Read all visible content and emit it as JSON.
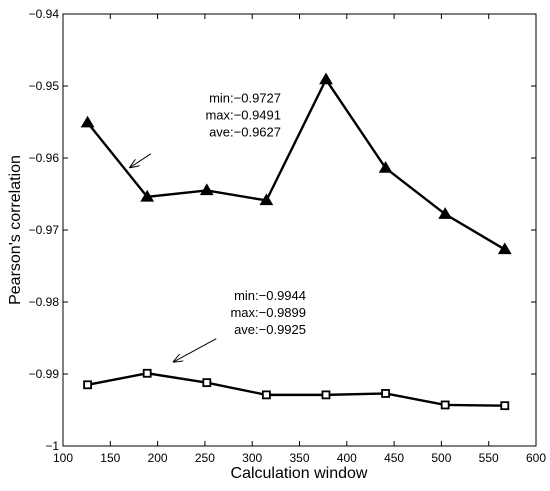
{
  "chart_data": {
    "type": "line",
    "title": "",
    "xlabel": "Calculation window",
    "ylabel": "Pearson's correlation",
    "xlim": [
      100,
      600
    ],
    "ylim": [
      -1,
      -0.94
    ],
    "xticks": [
      100,
      150,
      200,
      250,
      300,
      350,
      400,
      450,
      500,
      550,
      600
    ],
    "yticks": [
      -1,
      -0.99,
      -0.98,
      -0.97,
      -0.96,
      -0.95,
      -0.94
    ],
    "xtick_labels": [
      "100",
      "150",
      "200",
      "250",
      "300",
      "350",
      "400",
      "450",
      "500",
      "550",
      "600"
    ],
    "ytick_labels": [
      "−1",
      "−0.99",
      "−0.98",
      "−0.97",
      "−0.96",
      "−0.95",
      "−0.94"
    ],
    "grid": false,
    "series": [
      {
        "marker": "triangle",
        "color": "#000000",
        "x": [
          126,
          189,
          252,
          315,
          378,
          441,
          504,
          567
        ],
        "y": [
          -0.9551,
          -0.9654,
          -0.9645,
          -0.9659,
          -0.9491,
          -0.9614,
          -0.9678,
          -0.9727
        ]
      },
      {
        "marker": "square",
        "color": "#000000",
        "x": [
          126,
          189,
          252,
          315,
          378,
          441,
          504,
          567
        ],
        "y": [
          -0.9915,
          -0.9899,
          -0.9912,
          -0.9929,
          -0.9929,
          -0.9927,
          -0.9943,
          -0.9944
        ]
      }
    ],
    "annotations": [
      {
        "lines": [
          "min:−0.9727",
          "max:−0.9491",
          "ave:−0.9627"
        ],
        "arrow_from": [
          193,
          -0.9594
        ],
        "arrow_to": [
          171,
          -0.9613
        ]
      },
      {
        "lines": [
          "min:−0.9944",
          "max:−0.9899",
          "ave:−0.9925"
        ],
        "arrow_from": [
          262,
          -0.9851
        ],
        "arrow_to": [
          217,
          -0.9883
        ]
      }
    ]
  }
}
